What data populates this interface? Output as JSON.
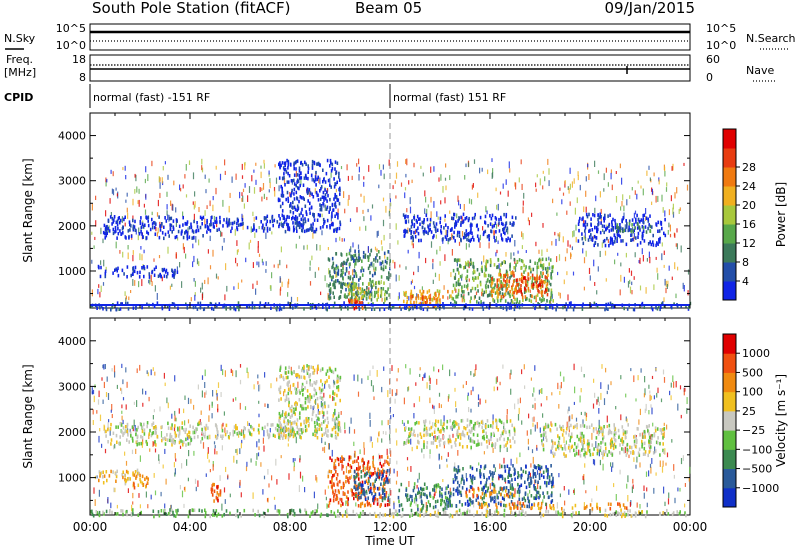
{
  "header": {
    "station": "South Pole Station (fitACF)",
    "beam": "Beam 05",
    "date": "09/Jan/2015"
  },
  "strip_labels": {
    "nsky": "N.Sky",
    "nsearch": "N.Search",
    "freq_line1": "Freq.",
    "freq_line2": "[MHz]",
    "nave": "Nave",
    "cpid": "CPID",
    "nsky_top": "10^5",
    "nsky_bottom": "10^0",
    "nsearch_top": "10^5",
    "nsearch_bottom": "10^0",
    "freq_top": "18",
    "freq_bottom": "8",
    "nave_top": "60",
    "nave_bottom": "0"
  },
  "cpid_segments": [
    {
      "label": "normal (fast) -151 RF",
      "start_hour": 0,
      "end_hour": 12
    },
    {
      "label": "normal (fast) 151 RF",
      "start_hour": 12,
      "end_hour": 24
    }
  ],
  "chart_data": [
    {
      "type": "heatmap",
      "name": "power-panel",
      "xlabel": "",
      "ylabel": "Slant Range [km]",
      "xlim": [
        0,
        24
      ],
      "ylim": [
        180,
        4500
      ],
      "y_ticks": [
        1000,
        2000,
        3000,
        4000
      ],
      "colorbar": {
        "label": "Power [dB]",
        "ticks": [
          "4",
          "8",
          "12",
          "16",
          "20",
          "24",
          "28"
        ],
        "colors": [
          "#1024e6",
          "#234ea8",
          "#3c7a5a",
          "#58a84a",
          "#a8c83c",
          "#f0b020",
          "#f07a10",
          "#e83c10",
          "#e00000"
        ]
      },
      "regions": [
        {
          "start_hour": 0.0,
          "end_hour": 24.0,
          "range_min": 180,
          "range_max": 330,
          "level": 1
        },
        {
          "start_hour": 0.3,
          "end_hour": 3.5,
          "range_min": 900,
          "range_max": 1150,
          "level": 0
        },
        {
          "start_hour": 0.5,
          "end_hour": 4.5,
          "range_min": 1750,
          "range_max": 2250,
          "level": 0
        },
        {
          "start_hour": 4.5,
          "end_hour": 8.5,
          "range_min": 1900,
          "range_max": 2250,
          "level": 0
        },
        {
          "start_hour": 7.5,
          "end_hour": 10.0,
          "range_min": 1900,
          "range_max": 3500,
          "level": 0
        },
        {
          "start_hour": 9.5,
          "end_hour": 12.0,
          "range_min": 400,
          "range_max": 1500,
          "level": 2
        },
        {
          "start_hour": 10.2,
          "end_hour": 11.8,
          "range_min": 300,
          "range_max": 800,
          "level": 4
        },
        {
          "start_hour": 10.3,
          "end_hour": 11.0,
          "range_min": 200,
          "range_max": 400,
          "level": 7
        },
        {
          "start_hour": 12.3,
          "end_hour": 14.5,
          "range_min": 250,
          "range_max": 600,
          "level": 5
        },
        {
          "start_hour": 12.8,
          "end_hour": 14.0,
          "range_min": 300,
          "range_max": 500,
          "level": 6
        },
        {
          "start_hour": 14.5,
          "end_hour": 18.5,
          "range_min": 350,
          "range_max": 1300,
          "level": 3
        },
        {
          "start_hour": 16.0,
          "end_hour": 18.3,
          "range_min": 450,
          "range_max": 1000,
          "level": 6
        },
        {
          "start_hour": 17.0,
          "end_hour": 18.2,
          "range_min": 500,
          "range_max": 900,
          "level": 7
        },
        {
          "start_hour": 12.5,
          "end_hour": 17.0,
          "range_min": 1700,
          "range_max": 2300,
          "level": 0
        },
        {
          "start_hour": 19.5,
          "end_hour": 23.0,
          "range_min": 1600,
          "range_max": 2300,
          "level": 0
        },
        {
          "start_hour": 21.0,
          "end_hour": 22.5,
          "range_min": 1900,
          "range_max": 2100,
          "level": 2
        }
      ]
    },
    {
      "type": "heatmap",
      "name": "velocity-panel",
      "xlabel": "Time UT",
      "ylabel": "Slant Range [km]",
      "xlim": [
        0,
        24
      ],
      "ylim": [
        180,
        4500
      ],
      "y_ticks": [
        1000,
        2000,
        3000,
        4000
      ],
      "x_ticks": [
        "00:00",
        "04:00",
        "08:00",
        "12:00",
        "16:00",
        "20:00",
        "00:00"
      ],
      "colorbar": {
        "label": "Velocity [m s⁻¹]",
        "ticks": [
          "1000",
          "500",
          "100",
          "25",
          "−25",
          "−100",
          "−500",
          "−1000"
        ],
        "colors": [
          "#1030c8",
          "#2a5a9a",
          "#3c8a50",
          "#60c040",
          "#c8c8c0",
          "#f0c020",
          "#f08a10",
          "#f05010",
          "#e00000"
        ]
      },
      "regions": [
        {
          "start_hour": 0.0,
          "end_hour": 10.0,
          "range_min": 180,
          "range_max": 330,
          "level": 3
        },
        {
          "start_hour": 10.0,
          "end_hour": 24.0,
          "range_min": 180,
          "range_max": 330,
          "level": 4
        },
        {
          "start_hour": 0.3,
          "end_hour": 2.0,
          "range_min": 900,
          "range_max": 1200,
          "level": 5
        },
        {
          "start_hour": 0.5,
          "end_hour": 4.5,
          "range_min": 1750,
          "range_max": 2250,
          "level": 4
        },
        {
          "start_hour": 4.5,
          "end_hour": 8.5,
          "range_min": 1900,
          "range_max": 2200,
          "level": 4
        },
        {
          "start_hour": 7.5,
          "end_hour": 10.0,
          "range_min": 1900,
          "range_max": 3500,
          "level": 4
        },
        {
          "start_hour": 9.5,
          "end_hour": 12.0,
          "range_min": 400,
          "range_max": 1500,
          "level": 7
        },
        {
          "start_hour": 10.5,
          "end_hour": 12.0,
          "range_min": 500,
          "range_max": 1200,
          "level": 1
        },
        {
          "start_hour": 12.3,
          "end_hour": 14.5,
          "range_min": 300,
          "range_max": 900,
          "level": 2
        },
        {
          "start_hour": 14.5,
          "end_hour": 18.5,
          "range_min": 400,
          "range_max": 1300,
          "level": 1
        },
        {
          "start_hour": 15.0,
          "end_hour": 17.0,
          "range_min": 600,
          "range_max": 800,
          "level": 6
        },
        {
          "start_hour": 15.5,
          "end_hour": 21.5,
          "range_min": 350,
          "range_max": 480,
          "level": 6
        },
        {
          "start_hour": 12.5,
          "end_hour": 17.0,
          "range_min": 1700,
          "range_max": 2300,
          "level": 4
        },
        {
          "start_hour": 18.0,
          "end_hour": 23.0,
          "range_min": 1500,
          "range_max": 2200,
          "level": 4
        },
        {
          "start_hour": 4.8,
          "end_hour": 5.2,
          "range_min": 500,
          "range_max": 900,
          "level": 7
        },
        {
          "start_hour": 1.7,
          "end_hour": 2.3,
          "range_min": 800,
          "range_max": 1100,
          "level": 6
        }
      ]
    }
  ]
}
